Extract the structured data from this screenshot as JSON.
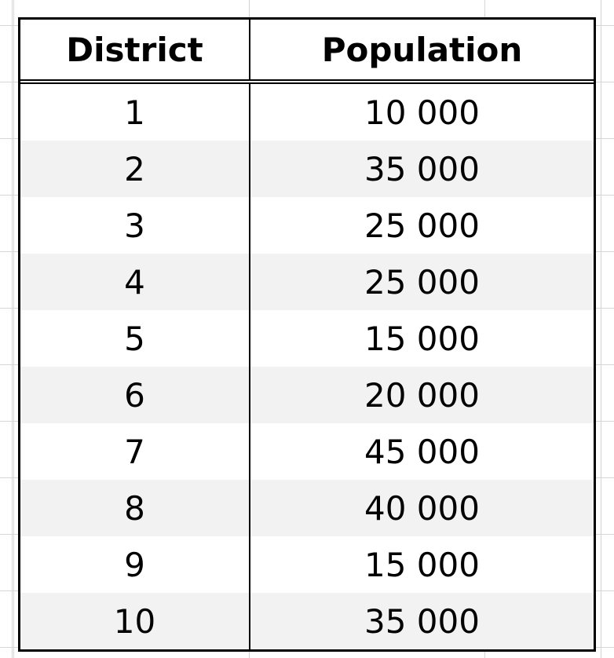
{
  "table": {
    "headers": [
      "District",
      "Population"
    ],
    "rows": [
      {
        "district": "1",
        "population": "10 000"
      },
      {
        "district": "2",
        "population": "35 000"
      },
      {
        "district": "3",
        "population": "25 000"
      },
      {
        "district": "4",
        "population": "25 000"
      },
      {
        "district": "5",
        "population": "15 000"
      },
      {
        "district": "6",
        "population": "20 000"
      },
      {
        "district": "7",
        "population": "45 000"
      },
      {
        "district": "8",
        "population": "40 000"
      },
      {
        "district": "9",
        "population": "15 000"
      },
      {
        "district": "10",
        "population": "35 000"
      }
    ]
  },
  "colors": {
    "border": "#000000",
    "alt_row_fill": "#f2f2f2",
    "gridline": "#d4d4d4"
  }
}
